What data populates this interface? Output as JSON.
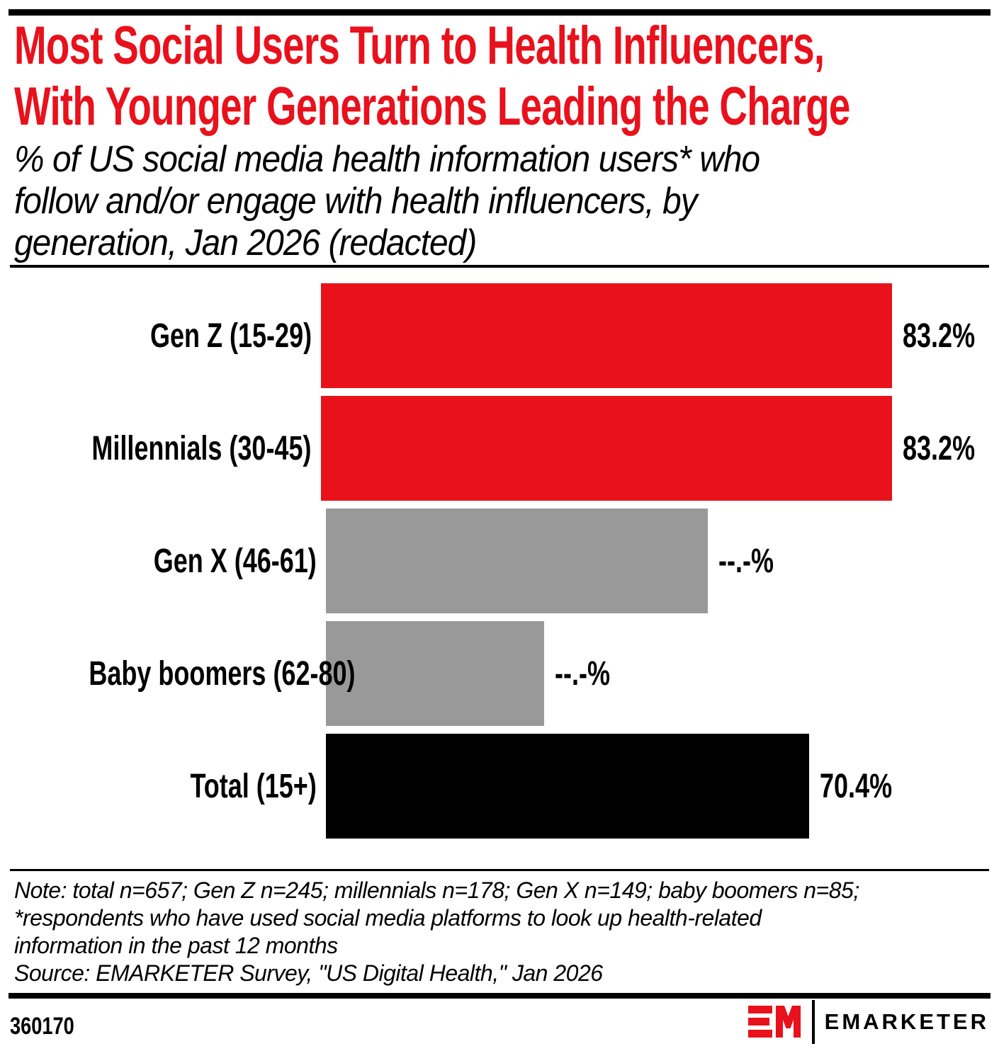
{
  "header": {
    "title_lines": [
      "Most Social Users Turn to Health Influencers,",
      "With Younger Generations Leading the Charge"
    ],
    "subtitle_lines": [
      "% of US social media health information users* who",
      "follow and/or engage with health influencers, by",
      "generation, Jan 2026 (redacted)"
    ]
  },
  "chart_data": {
    "type": "bar",
    "orientation": "horizontal",
    "title": "Most Social Users Turn to Health Influencers, With Younger Generations Leading the Charge",
    "subtitle": "% of US social media health information users* who follow and/or engage with health influencers, by generation, Jan 2026 (redacted)",
    "categories": [
      "Gen Z (15-29)",
      "Millennials (30-45)",
      "Gen X (46-61)",
      "Baby boomers (62-80)",
      "Total (15+)"
    ],
    "value_labels": [
      "83.2%",
      "83.2%",
      "--.-%",
      "--.-%",
      "70.4%"
    ],
    "values": [
      83.2,
      83.2,
      null,
      null,
      70.4
    ],
    "bar_width_pct": [
      83.2,
      83.2,
      55.6,
      31.8,
      70.4
    ],
    "redacted": [
      false,
      false,
      true,
      true,
      false
    ],
    "bar_colors": [
      "#e8111c",
      "#e8111c",
      "#999999",
      "#999999",
      "#000000"
    ],
    "xlim": [
      0,
      100
    ],
    "grid": false,
    "legend": "none"
  },
  "colors": {
    "accent_red": "#e8111c",
    "redacted_gray": "#999999",
    "bar_black": "#000000"
  },
  "footnote": {
    "note_lines": [
      "Note: total n=657; Gen Z n=245; millennials n=178; Gen X n=149; baby boomers n=85;",
      "*respondents who have used social media platforms to look up health-related",
      "information in the past 12 months"
    ],
    "source_line": "Source: EMARKETER Survey, \"US Digital Health,\" Jan 2026"
  },
  "footer": {
    "chart_id": "360170",
    "brand_name": "EMARKETER"
  }
}
